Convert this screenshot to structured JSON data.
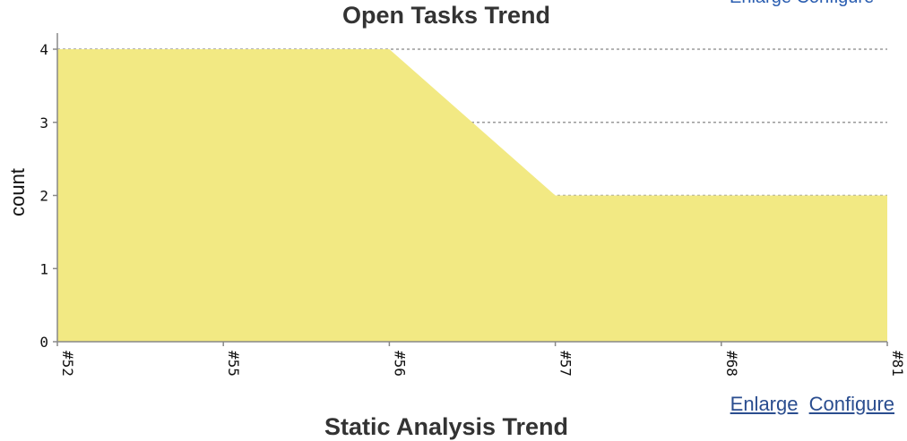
{
  "chart_data": {
    "type": "area",
    "title": "Open Tasks Trend",
    "xlabel": "",
    "ylabel": "count",
    "categories": [
      "#52",
      "#55",
      "#56",
      "#57",
      "#68",
      "#81"
    ],
    "values": [
      4,
      4,
      4,
      2,
      2,
      2
    ],
    "ylim": [
      0,
      4
    ],
    "yticks": [
      0,
      1,
      2,
      3,
      4
    ],
    "grid": true,
    "fill_color": "#f2e983"
  },
  "links": {
    "enlarge": "Enlarge",
    "configure": "Configure",
    "top_cut": "Enlarge Configure"
  },
  "next_chart_title": "Static Analysis Trend"
}
